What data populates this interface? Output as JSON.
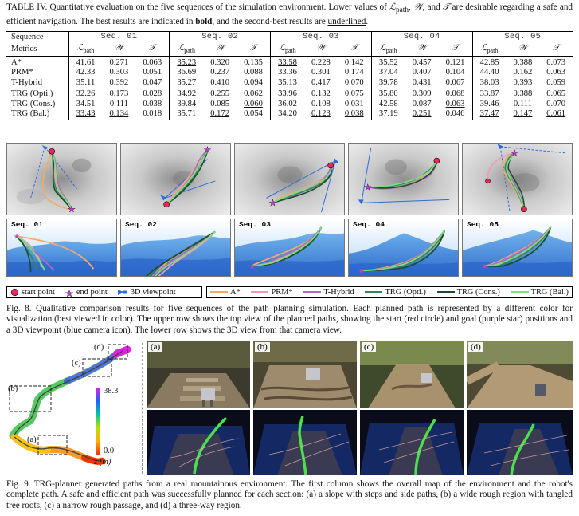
{
  "table": {
    "caption_html": "TABLE IV. Quantitative evaluation on the five sequences of the simulation environment. Lower values of <i>&#8466;</i><sub>path</sub>, <i>&#119986;</i>, and <i>&#119983;</i> are desirable regarding a safe and efficient navigation. The best results are indicated in <b>bold</b>, and the second-best results are <u>underlined</u>.",
    "sequence_header": "Sequence",
    "metrics_header": "Metrics",
    "sequences": [
      "Seq. 01",
      "Seq. 02",
      "Seq. 03",
      "Seq. 04",
      "Seq. 05"
    ],
    "metric_labels": [
      "ℒ",
      "𝒲",
      "𝒯"
    ],
    "metric_sub": "path",
    "rows": [
      {
        "method": "A*",
        "cells": [
          {
            "v": "41.61"
          },
          {
            "v": "0.271"
          },
          {
            "v": "0.063"
          },
          {
            "v": "35.23",
            "s": "u"
          },
          {
            "v": "0.320"
          },
          {
            "v": "0.135"
          },
          {
            "v": "33.58",
            "s": "u"
          },
          {
            "v": "0.228"
          },
          {
            "v": "0.142"
          },
          {
            "v": "35.52",
            "s": "b"
          },
          {
            "v": "0.457"
          },
          {
            "v": "0.121"
          },
          {
            "v": "42.85"
          },
          {
            "v": "0.388"
          },
          {
            "v": "0.073"
          }
        ]
      },
      {
        "method": "PRM*",
        "cells": [
          {
            "v": "42.33"
          },
          {
            "v": "0.303"
          },
          {
            "v": "0.051"
          },
          {
            "v": "36.69"
          },
          {
            "v": "0.237"
          },
          {
            "v": "0.088"
          },
          {
            "v": "33.36",
            "s": "b"
          },
          {
            "v": "0.301"
          },
          {
            "v": "0.174"
          },
          {
            "v": "37.04"
          },
          {
            "v": "0.407"
          },
          {
            "v": "0.104"
          },
          {
            "v": "44.40"
          },
          {
            "v": "0.162"
          },
          {
            "v": "0.063"
          }
        ]
      },
      {
        "method": "T-Hybrid",
        "cells": [
          {
            "v": "35.11"
          },
          {
            "v": "0.392"
          },
          {
            "v": "0.047"
          },
          {
            "v": "35.27"
          },
          {
            "v": "0.410"
          },
          {
            "v": "0.094"
          },
          {
            "v": "35.13"
          },
          {
            "v": "0.417"
          },
          {
            "v": "0.070"
          },
          {
            "v": "39.78"
          },
          {
            "v": "0.431"
          },
          {
            "v": "0.067"
          },
          {
            "v": "38.03"
          },
          {
            "v": "0.393"
          },
          {
            "v": "0.059",
            "s": "b"
          }
        ]
      },
      {
        "method": "TRG (Opti.)",
        "cells": [
          {
            "v": "32.26",
            "s": "b"
          },
          {
            "v": "0.173"
          },
          {
            "v": "0.028",
            "s": "u"
          },
          {
            "v": "34.92",
            "s": "b"
          },
          {
            "v": "0.255"
          },
          {
            "v": "0.062"
          },
          {
            "v": "33.96"
          },
          {
            "v": "0.132"
          },
          {
            "v": "0.075"
          },
          {
            "v": "35.80",
            "s": "u"
          },
          {
            "v": "0.309"
          },
          {
            "v": "0.068"
          },
          {
            "v": "33.87",
            "s": "b"
          },
          {
            "v": "0.388"
          },
          {
            "v": "0.065"
          }
        ]
      },
      {
        "method": "TRG (Cons.)",
        "cells": [
          {
            "v": "34.51"
          },
          {
            "v": "0.111",
            "s": "b"
          },
          {
            "v": "0.038"
          },
          {
            "v": "39.84"
          },
          {
            "v": "0.085",
            "s": "b"
          },
          {
            "v": "0.060",
            "s": "u"
          },
          {
            "v": "36.02"
          },
          {
            "v": "0.108",
            "s": "b"
          },
          {
            "v": "0.031",
            "s": "b"
          },
          {
            "v": "42.58"
          },
          {
            "v": "0.087",
            "s": "b"
          },
          {
            "v": "0.063",
            "s": "u"
          },
          {
            "v": "39.46"
          },
          {
            "v": "0.111",
            "s": "b"
          },
          {
            "v": "0.070"
          }
        ]
      },
      {
        "method": "TRG (Bal.)",
        "cells": [
          {
            "v": "33.43",
            "s": "u"
          },
          {
            "v": "0.134",
            "s": "u"
          },
          {
            "v": "0.018",
            "s": "b"
          },
          {
            "v": "35.71"
          },
          {
            "v": "0.172",
            "s": "u"
          },
          {
            "v": "0.054",
            "s": "b"
          },
          {
            "v": "34.20"
          },
          {
            "v": "0.123",
            "s": "u"
          },
          {
            "v": "0.038",
            "s": "u"
          },
          {
            "v": "37.19"
          },
          {
            "v": "0.251",
            "s": "u"
          },
          {
            "v": "0.046",
            "s": "b"
          },
          {
            "v": "37.47",
            "s": "u"
          },
          {
            "v": "0.147",
            "s": "u"
          },
          {
            "v": "0.061",
            "s": "u"
          }
        ]
      }
    ]
  },
  "fig8": {
    "seq_tags": [
      "Seq. 01",
      "Seq. 02",
      "Seq. 03",
      "Seq. 04",
      "Seq. 05"
    ],
    "markers": {
      "start": "start point",
      "end": "end point",
      "viewpoint": "3D viewpoint"
    },
    "methods": [
      {
        "name": "A*",
        "color": "#f4a96a"
      },
      {
        "name": "PRM*",
        "color": "#f29bb2"
      },
      {
        "name": "T-Hybrid",
        "color": "#b06bc0"
      },
      {
        "name": "TRG (Opti.)",
        "color": "#2e8b57"
      },
      {
        "name": "TRG (Cons.)",
        "color": "#1d4d2e"
      },
      {
        "name": "TRG (Bal.)",
        "color": "#7be07b"
      }
    ],
    "caption": "Fig. 8. Qualitative comparison results for five sequences of the path planning simulation. Each planned path is represented by a different color for visualization (best viewed in color). The upper row shows the top view of the planned paths, showing the start (red circle) and goal (purple star) positions and a 3D viewpoint (blue camera icon). The lower row shows the 3D view from that camera view."
  },
  "fig9": {
    "region_labels": [
      "(a)",
      "(b)",
      "(c)",
      "(d)"
    ],
    "colorbar_max": "38.3",
    "colorbar_min": "0.0",
    "colorbar_unit": "z (m)",
    "caption": "Fig. 9. TRG-planner generated paths from a real mountainous environment. The first column shows the overall map of the environment and the robot's complete path. A safe and efficient path was successfully planned for each section: (a) a slope with steps and side paths, (b) a wide rough region with tangled tree roots, (c) a narrow rough passage, and (d) a three-way region."
  }
}
